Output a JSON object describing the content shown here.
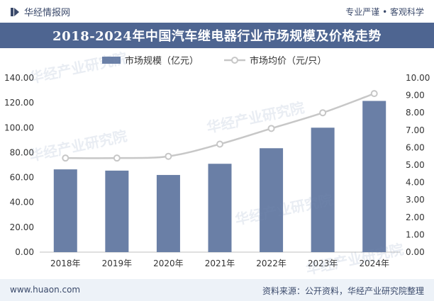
{
  "header": {
    "brand": "华经情报网",
    "slogan": "专业严谨 • 客观科学"
  },
  "title": "2018-2024年中国汽车继电器行业市场规模及价格走势",
  "footer": {
    "site": "www.huaon.com",
    "source": "资料来源：公开资料，华经产业研究院整理"
  },
  "watermark": "华经产业研究院",
  "colors": {
    "bar": "#6a7fa6",
    "line": "#c7c7c7",
    "title_band": "#4e6591",
    "text": "#3b4a6b"
  },
  "chart_data": {
    "type": "bar",
    "categories": [
      "2018年",
      "2019年",
      "2020年",
      "2021年",
      "2022年",
      "2023年",
      "2024年"
    ],
    "series": [
      {
        "name": "市场规模（亿元）",
        "type": "bar",
        "axis": "left",
        "values": [
          66.5,
          65.5,
          62.0,
          71.0,
          83.5,
          100.0,
          121.5
        ]
      },
      {
        "name": "市场均价（元/只）",
        "type": "line",
        "axis": "right",
        "values": [
          5.4,
          5.4,
          5.5,
          6.2,
          7.1,
          8.0,
          9.1
        ]
      }
    ],
    "y_left": {
      "min": 0,
      "max": 140,
      "ticks": [
        "0.00",
        "20.00",
        "40.00",
        "60.00",
        "80.00",
        "100.00",
        "120.00",
        "140.00"
      ]
    },
    "y_right": {
      "min": 0,
      "max": 10,
      "ticks": [
        "0.00",
        "1.00",
        "2.00",
        "3.00",
        "4.00",
        "5.00",
        "6.00",
        "7.00",
        "8.00",
        "9.00",
        "10.00"
      ]
    },
    "legend_position": "top-center",
    "grid": false
  }
}
